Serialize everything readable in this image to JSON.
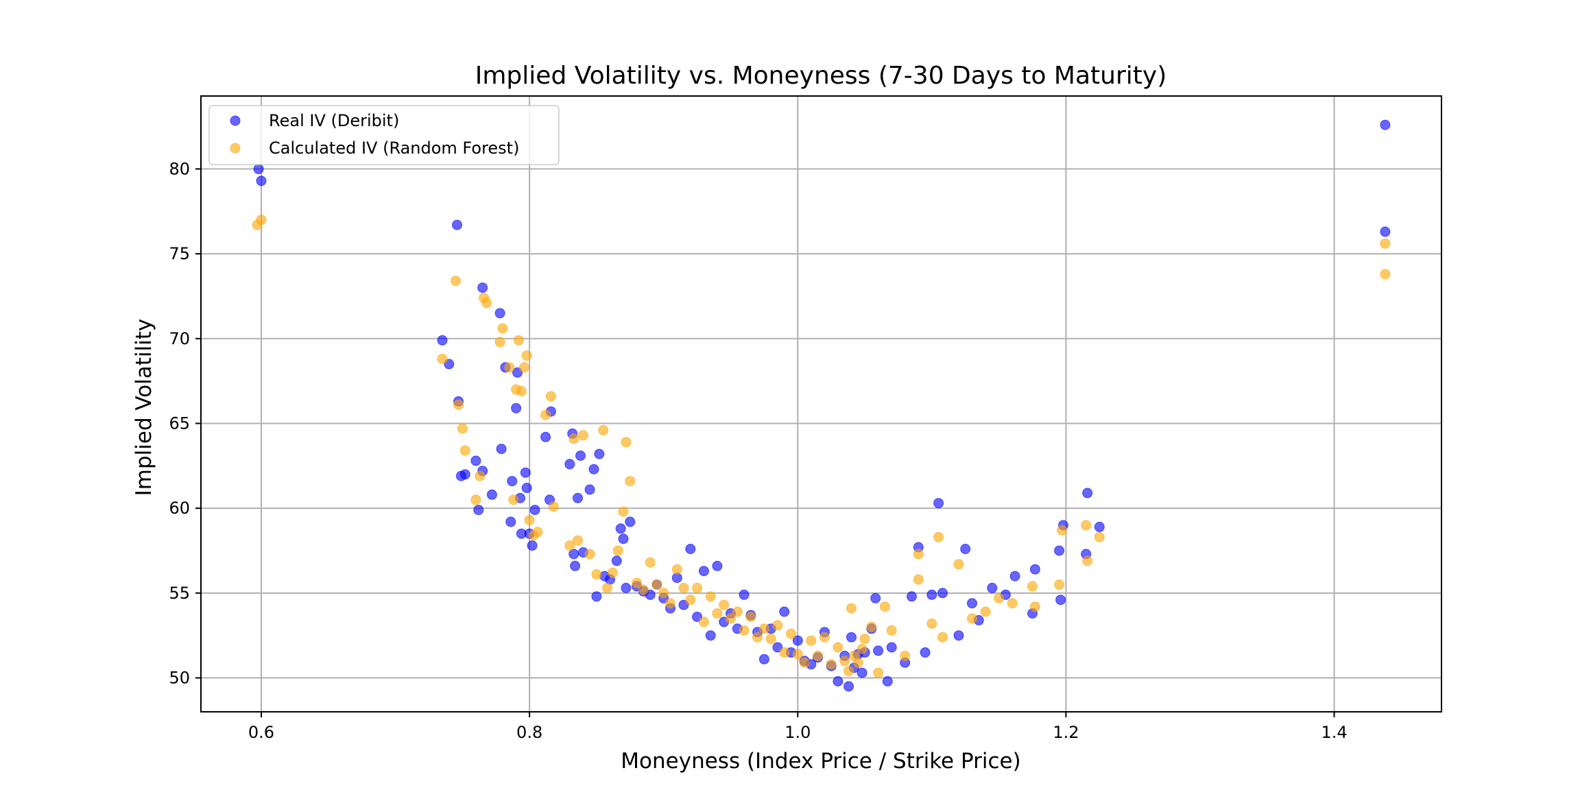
{
  "chart_data": {
    "type": "scatter",
    "title": "Implied Volatility vs. Moneyness (7-30 Days to Maturity)",
    "xlabel": "Moneyness (Index Price / Strike Price)",
    "ylabel": "Implied Volatility",
    "xlim": [
      0.555,
      1.48
    ],
    "ylim": [
      48.0,
      84.3
    ],
    "xticks": [
      0.6,
      0.8,
      1.0,
      1.2,
      1.4
    ],
    "xtick_labels": [
      "0.6",
      "0.8",
      "1.0",
      "1.2",
      "1.4"
    ],
    "yticks": [
      50,
      55,
      60,
      65,
      70,
      75,
      80
    ],
    "ytick_labels": [
      "50",
      "55",
      "60",
      "65",
      "70",
      "75",
      "80"
    ],
    "grid": true,
    "legend_position": "top-left",
    "series": [
      {
        "name": "Real IV (Deribit)",
        "color": "#0000ff",
        "x": [
          0.598,
          0.6,
          0.735,
          0.74,
          0.746,
          0.747,
          0.749,
          0.752,
          0.76,
          0.762,
          0.765,
          0.765,
          0.772,
          0.778,
          0.779,
          0.782,
          0.786,
          0.787,
          0.79,
          0.791,
          0.793,
          0.794,
          0.797,
          0.798,
          0.8,
          0.802,
          0.804,
          0.812,
          0.815,
          0.816,
          0.83,
          0.832,
          0.833,
          0.834,
          0.836,
          0.838,
          0.84,
          0.845,
          0.848,
          0.85,
          0.852,
          0.856,
          0.86,
          0.865,
          0.868,
          0.87,
          0.872,
          0.875,
          0.88,
          0.885,
          0.89,
          0.895,
          0.9,
          0.905,
          0.91,
          0.915,
          0.92,
          0.925,
          0.93,
          0.935,
          0.94,
          0.945,
          0.95,
          0.955,
          0.96,
          0.965,
          0.97,
          0.975,
          0.98,
          0.985,
          0.99,
          0.995,
          1.0,
          1.005,
          1.01,
          1.015,
          1.02,
          1.025,
          1.03,
          1.035,
          1.038,
          1.04,
          1.042,
          1.045,
          1.048,
          1.05,
          1.055,
          1.058,
          1.06,
          1.067,
          1.07,
          1.08,
          1.085,
          1.09,
          1.095,
          1.1,
          1.105,
          1.108,
          1.12,
          1.125,
          1.13,
          1.135,
          1.145,
          1.155,
          1.162,
          1.175,
          1.177,
          1.195,
          1.196,
          1.198,
          1.215,
          1.216,
          1.225,
          1.438,
          1.438
        ],
        "y": [
          80.0,
          79.3,
          69.9,
          68.5,
          76.7,
          66.3,
          61.9,
          62.0,
          62.8,
          59.9,
          73.0,
          62.2,
          60.8,
          71.5,
          63.5,
          68.3,
          59.2,
          61.6,
          65.9,
          68.0,
          60.6,
          58.5,
          62.1,
          61.2,
          58.5,
          57.8,
          59.9,
          64.2,
          60.5,
          65.7,
          62.6,
          64.4,
          57.3,
          56.6,
          60.6,
          63.1,
          57.4,
          61.1,
          62.3,
          54.8,
          63.2,
          56.0,
          55.8,
          56.9,
          58.8,
          58.2,
          55.3,
          59.2,
          55.4,
          55.1,
          54.9,
          55.5,
          54.7,
          54.1,
          55.9,
          54.3,
          57.6,
          53.6,
          56.3,
          52.5,
          56.6,
          53.3,
          53.8,
          52.9,
          54.9,
          53.7,
          52.7,
          51.1,
          52.9,
          51.8,
          53.9,
          51.5,
          52.2,
          51.0,
          50.8,
          51.2,
          52.7,
          50.7,
          49.8,
          51.3,
          49.5,
          52.4,
          50.6,
          51.4,
          50.3,
          51.5,
          52.9,
          54.7,
          51.6,
          49.8,
          51.8,
          50.9,
          54.8,
          57.7,
          51.5,
          54.9,
          60.3,
          55.0,
          52.5,
          57.6,
          54.4,
          53.4,
          55.3,
          54.9,
          56.0,
          53.8,
          56.4,
          57.5,
          54.6,
          59.0,
          57.3,
          60.9,
          58.9,
          82.6,
          76.3
        ]
      },
      {
        "name": "Calculated IV (Random Forest)",
        "color": "#ffa500",
        "x": [
          0.597,
          0.6,
          0.735,
          0.745,
          0.747,
          0.75,
          0.752,
          0.76,
          0.763,
          0.766,
          0.768,
          0.778,
          0.78,
          0.785,
          0.788,
          0.79,
          0.792,
          0.794,
          0.796,
          0.798,
          0.8,
          0.803,
          0.806,
          0.812,
          0.816,
          0.818,
          0.83,
          0.833,
          0.836,
          0.84,
          0.845,
          0.85,
          0.855,
          0.858,
          0.862,
          0.866,
          0.87,
          0.872,
          0.875,
          0.88,
          0.885,
          0.89,
          0.895,
          0.9,
          0.905,
          0.91,
          0.915,
          0.92,
          0.925,
          0.93,
          0.935,
          0.94,
          0.945,
          0.95,
          0.955,
          0.96,
          0.965,
          0.97,
          0.975,
          0.98,
          0.985,
          0.99,
          0.995,
          1.0,
          1.005,
          1.01,
          1.015,
          1.02,
          1.025,
          1.03,
          1.035,
          1.038,
          1.04,
          1.042,
          1.045,
          1.048,
          1.05,
          1.055,
          1.06,
          1.065,
          1.07,
          1.08,
          1.09,
          1.09,
          1.1,
          1.105,
          1.108,
          1.12,
          1.13,
          1.14,
          1.15,
          1.16,
          1.175,
          1.177,
          1.195,
          1.197,
          1.215,
          1.216,
          1.225,
          1.438,
          1.438
        ],
        "y": [
          76.7,
          77.0,
          68.8,
          73.4,
          66.1,
          64.7,
          63.4,
          60.5,
          61.9,
          72.4,
          72.1,
          69.8,
          70.6,
          68.3,
          60.5,
          67.0,
          69.9,
          66.9,
          68.3,
          69.0,
          59.3,
          58.4,
          58.6,
          65.5,
          66.6,
          60.1,
          57.8,
          64.1,
          58.1,
          64.3,
          57.3,
          56.1,
          64.6,
          55.3,
          56.2,
          57.5,
          59.8,
          63.9,
          61.6,
          55.6,
          55.2,
          56.8,
          55.5,
          55.0,
          54.4,
          56.4,
          55.3,
          54.6,
          55.3,
          53.3,
          54.8,
          53.8,
          54.3,
          53.5,
          53.9,
          52.8,
          53.6,
          52.4,
          52.9,
          52.3,
          53.1,
          51.5,
          52.6,
          51.4,
          50.9,
          52.2,
          51.3,
          52.4,
          50.8,
          51.8,
          51.0,
          50.4,
          54.1,
          51.3,
          50.9,
          51.7,
          52.3,
          53.0,
          50.3,
          54.2,
          52.8,
          51.3,
          57.3,
          55.8,
          53.2,
          58.3,
          52.4,
          56.7,
          53.5,
          53.9,
          54.7,
          54.4,
          55.4,
          54.2,
          55.5,
          58.7,
          59.0,
          56.9,
          58.3,
          75.6,
          73.8
        ]
      }
    ]
  }
}
